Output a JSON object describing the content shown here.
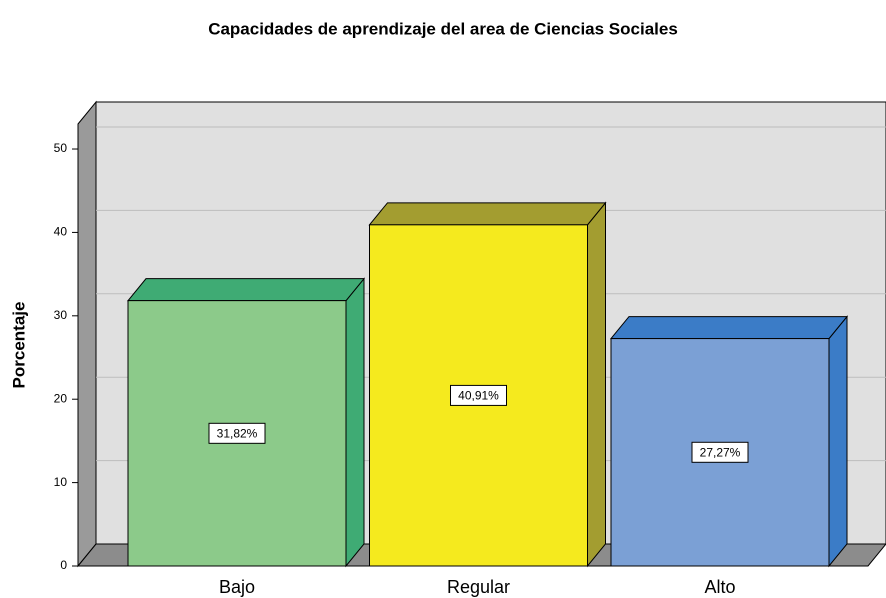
{
  "chart_data": {
    "type": "bar3d",
    "title": "Capacidades de aprendizaje del area de Ciencias Sociales",
    "y_label": "Porcentaje",
    "categories": [
      "Bajo",
      "Regular",
      "Alto"
    ],
    "values": [
      31.82,
      40.91,
      27.27
    ],
    "value_labels": [
      "31,82%",
      "40,91%",
      "27,27%"
    ],
    "colors": [
      "#8cca8a",
      "#f5ea1e",
      "#7ba0d5"
    ],
    "side_colors": [
      "#3fab74",
      "#a39d30",
      "#3b7cc7"
    ],
    "ylim": [
      0,
      53
    ],
    "yticks": [
      0,
      10,
      20,
      30,
      40,
      50
    ],
    "grid": true
  }
}
